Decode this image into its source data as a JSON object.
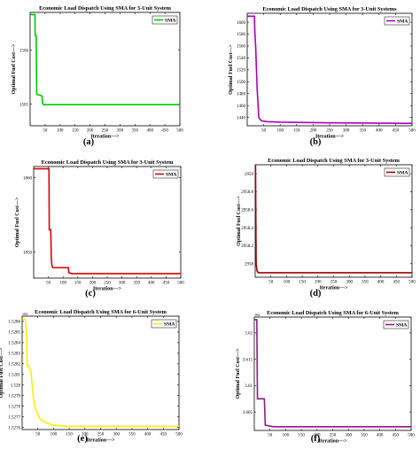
{
  "chart_data": [
    {
      "caption": "(a)",
      "type": "line",
      "title": "Economic Load Dispatch Using SMA for 3-Unit System",
      "xlabel": "Iteration--->",
      "ylabel": "Optimal Fuel Cost--->",
      "legend": {
        "entry": "SMA",
        "placement": "top-right"
      },
      "color": "#00cc00",
      "xlim": [
        0,
        500
      ],
      "ylim": [
        1504.6,
        1506.7
      ],
      "xticks": [
        50,
        100,
        150,
        200,
        250,
        300,
        350,
        400,
        450,
        500
      ],
      "yticks": [
        1505,
        1506
      ],
      "ytick_labels": [
        "1505",
        "1506"
      ],
      "exponent": "",
      "series": [
        {
          "x": [
            1,
            16,
            17,
            20,
            22,
            25,
            40,
            41,
            45,
            500
          ],
          "y": [
            1506.66,
            1506.66,
            1506.27,
            1506.27,
            1505.18,
            1505.18,
            1505.15,
            1505.02,
            1504.99,
            1504.99
          ]
        }
      ]
    },
    {
      "caption": "(b)",
      "type": "line",
      "title": "Economic Load Dispatch Using SMA for 3-Unit Systems",
      "xlabel": "Iteration--->",
      "ylabel": "Optimal Fuel Cost--->",
      "legend": {
        "entry": "SMA",
        "placement": "top-right"
      },
      "color": "#aa00bb",
      "xlim": [
        0,
        500
      ],
      "ylim": [
        1426,
        1615
      ],
      "xticks": [
        50,
        100,
        150,
        200,
        250,
        300,
        350,
        400,
        450,
        500
      ],
      "yticks": [
        1440,
        1460,
        1480,
        1500,
        1520,
        1540,
        1560,
        1580,
        1600
      ],
      "ytick_labels": [
        "1440",
        "1460",
        "1480",
        "1500",
        "1520",
        "1540",
        "1560",
        "1580",
        "1600"
      ],
      "exponent": "",
      "series": [
        {
          "x": [
            1,
            22,
            23,
            26,
            28,
            30,
            32,
            35,
            40,
            45,
            60,
            100,
            250,
            500
          ],
          "y": [
            1610,
            1610,
            1585,
            1555,
            1520,
            1490,
            1470,
            1440,
            1436,
            1434,
            1433,
            1432,
            1431,
            1430
          ]
        }
      ]
    },
    {
      "caption": "(c)",
      "type": "line",
      "title": "Economic Load Dispatch Using SMA for 3-Unit System",
      "xlabel": "Iteration--->",
      "ylabel": "Optimal Fuel Cost--->",
      "legend": {
        "entry": "SMA",
        "placement": "top-right"
      },
      "color": "#dd0000",
      "xlim": [
        0,
        500
      ],
      "ylim": [
        1846.5,
        1861.5
      ],
      "xticks": [
        50,
        100,
        150,
        200,
        250,
        300,
        350,
        400,
        450,
        500
      ],
      "yticks": [
        1850,
        1860
      ],
      "ytick_labels": [
        "1850",
        "1860"
      ],
      "exponent": "",
      "series": [
        {
          "x": [
            1,
            52,
            53,
            58,
            60,
            62,
            65,
            118,
            120,
            130,
            500
          ],
          "y": [
            1861.2,
            1861.2,
            1853,
            1853,
            1849.2,
            1848.2,
            1847.9,
            1847.9,
            1847.2,
            1847.1,
            1847.1
          ]
        }
      ]
    },
    {
      "caption": "(d)",
      "type": "line",
      "title": "Economic Load Dispatch Using SMA for 3-Unit System",
      "xlabel": "Iteration--->",
      "ylabel": "Optimal Fuel Cost--->",
      "legend": {
        "entry": "SMA",
        "placement": "top-right"
      },
      "color": "#a00000",
      "xlim": [
        0,
        500
      ],
      "ylim": [
        2957.85,
        2959.1
      ],
      "xticks": [
        50,
        100,
        150,
        200,
        250,
        300,
        350,
        400,
        450,
        500
      ],
      "yticks": [
        2958,
        2958.2,
        2958.4,
        2958.6,
        2958.8,
        2959
      ],
      "ytick_labels": [
        "2958",
        "2958.2",
        "2958.4",
        "2958.6",
        "2958.8",
        "2959"
      ],
      "exponent": "",
      "series": [
        {
          "x": [
            1,
            3,
            6,
            10,
            500
          ],
          "y": [
            2959.1,
            2958.0,
            2957.92,
            2957.9,
            2957.9
          ]
        }
      ]
    },
    {
      "caption": "(e)",
      "type": "line",
      "title": "Economic Load Dispatch Using SMA for 6-Unit System",
      "xlabel": "Iteration--->",
      "ylabel": "Optimal Fuel Cost--->",
      "legend": {
        "entry": "SMA",
        "placement": "top-right"
      },
      "color": "#ffee00",
      "xlim": [
        0,
        500
      ],
      "ylim": [
        1.52758,
        1.52865
      ],
      "xticks": [
        50,
        100,
        150,
        200,
        250,
        300,
        350,
        400,
        450,
        500
      ],
      "yticks": [
        1.5276,
        1.5277,
        1.5278,
        1.5279,
        1.528,
        1.5281,
        1.5282,
        1.5283,
        1.5284,
        1.5285,
        1.5286
      ],
      "ytick_labels": [
        "1.5276",
        "1.5277",
        "1.5278",
        "1.5279",
        "1.528",
        "1.5281",
        "1.5282",
        "1.5283",
        "1.5284",
        "1.5285",
        "1.5286"
      ],
      "exponent": "10^4",
      "series": [
        {
          "x": [
            1,
            10,
            12,
            14,
            16,
            20,
            28,
            32,
            35,
            40,
            50,
            60,
            80,
            100,
            150,
            500
          ],
          "y": [
            1.52862,
            1.52862,
            1.52855,
            1.52848,
            1.52818,
            1.52818,
            1.52813,
            1.528,
            1.5279,
            1.5278,
            1.52772,
            1.52767,
            1.52764,
            1.52762,
            1.52761,
            1.52761
          ]
        }
      ]
    },
    {
      "caption": "(f)",
      "type": "line",
      "title": "Economic Load Dispatch Using SMA for 6-Unit System",
      "xlabel": "Iteration--->",
      "ylabel": "Optimal Fuel Cost--->",
      "legend": {
        "entry": "SMA",
        "placement": "top-right"
      },
      "color": "#8a1a8a",
      "xlim": [
        0,
        500
      ],
      "ylim": [
        3.6015,
        3.623
      ],
      "xticks": [
        50,
        100,
        150,
        200,
        250,
        300,
        350,
        400,
        450,
        500
      ],
      "yticks": [
        3.605,
        3.61,
        3.615,
        3.62
      ],
      "ytick_labels": [
        "3.605",
        "3.61",
        "3.615",
        "3.62"
      ],
      "exponent": "10^4",
      "series": [
        {
          "x": [
            1,
            8,
            10,
            32,
            35,
            60,
            500
          ],
          "y": [
            3.6225,
            3.6225,
            3.6075,
            3.6075,
            3.6025,
            3.6022,
            3.6022
          ]
        }
      ]
    }
  ]
}
